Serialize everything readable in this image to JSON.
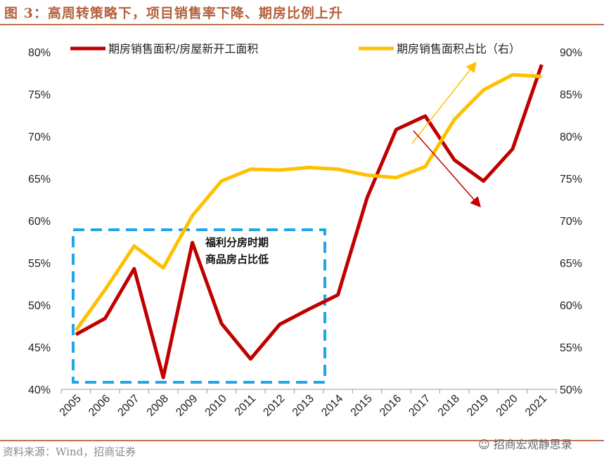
{
  "title": "图 3：高周转策略下，项目销售率下降、期房比例上升",
  "source": "资料来源：Wind，招商证券",
  "watermark": "招商宏观静思录",
  "chart_data": {
    "type": "line",
    "categories": [
      "2005",
      "2006",
      "2007",
      "2008",
      "2009",
      "2010",
      "2011",
      "2012",
      "2013",
      "2014",
      "2015",
      "2016",
      "2017",
      "2018",
      "2019",
      "2020",
      "2021"
    ],
    "left_axis": {
      "ylim": [
        40,
        80
      ],
      "ticks": [
        "40%",
        "45%",
        "50%",
        "55%",
        "60%",
        "65%",
        "70%",
        "75%",
        "80%"
      ]
    },
    "right_axis": {
      "ylim": [
        50,
        90
      ],
      "ticks": [
        "50%",
        "55%",
        "60%",
        "65%",
        "70%",
        "75%",
        "80%",
        "85%",
        "90%"
      ]
    },
    "series": [
      {
        "name": "期房销售面积/房屋新开工面积",
        "axis": "left",
        "color": "#c00000",
        "values": [
          46.5,
          48.4,
          54.3,
          41.4,
          57.4,
          47.8,
          43.6,
          47.7,
          49.5,
          51.2,
          62.7,
          70.8,
          72.4,
          67.2,
          64.7,
          68.5,
          78.5
        ]
      },
      {
        "name": "期房销售面积占比（右）",
        "axis": "right",
        "color": "#ffc000",
        "values": [
          57.0,
          61.8,
          67.0,
          64.4,
          70.6,
          74.7,
          76.1,
          76.0,
          76.3,
          76.1,
          75.4,
          75.1,
          76.4,
          82.0,
          85.5,
          87.3,
          87.1
        ]
      }
    ],
    "annotations": [
      "福利分房时期",
      "商品房占比低"
    ],
    "legend": "top",
    "grid": false
  }
}
